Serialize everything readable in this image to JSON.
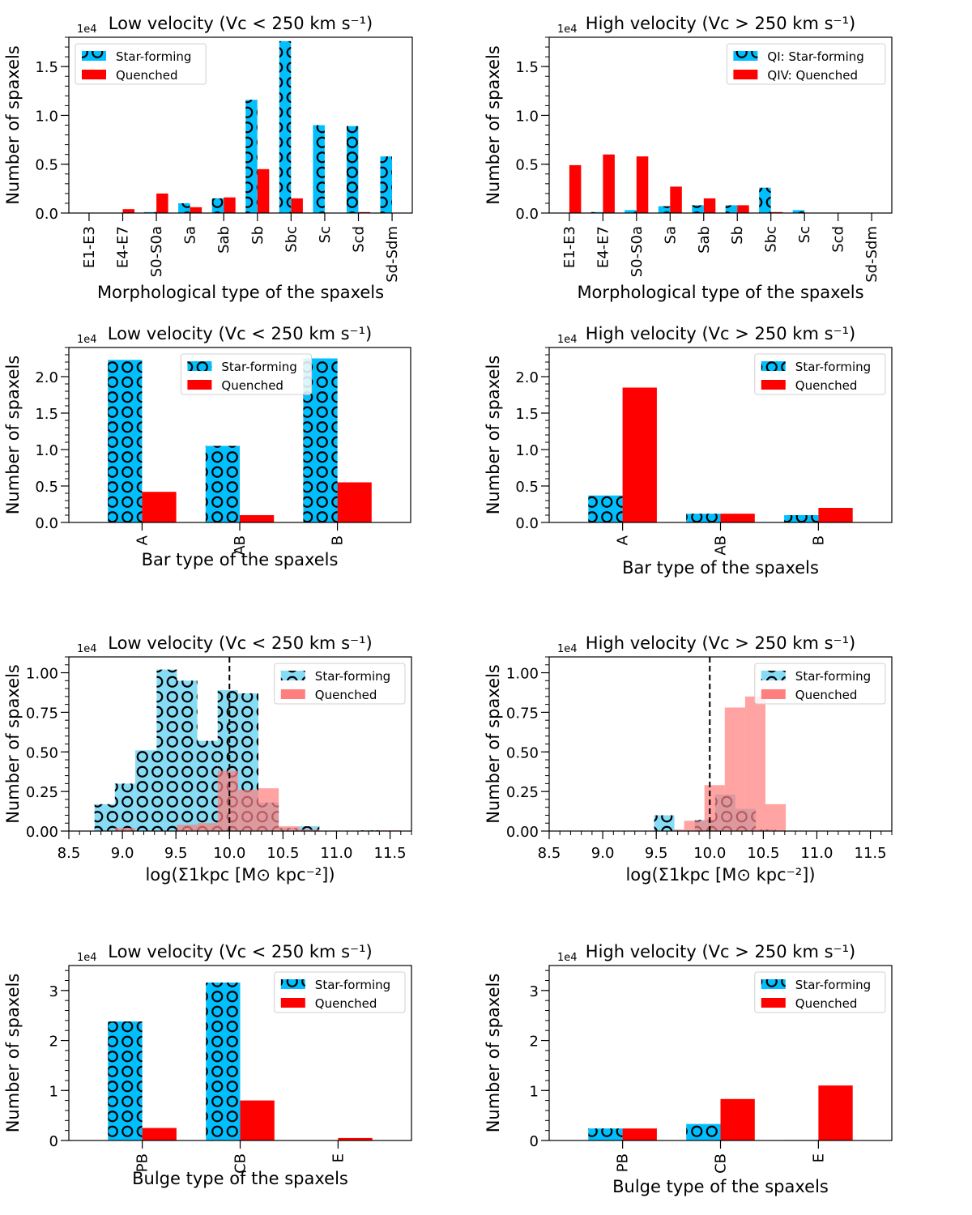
{
  "figure": {
    "colors": {
      "star_forming_bar": "#00bfff",
      "quenched_bar": "#ff0000",
      "star_forming_hist": "#87dcf5",
      "quenched_hist": "#ff7f7f",
      "hatch": "#000000",
      "threshold_line": "#000000"
    }
  },
  "chart_data": [
    {
      "id": "morph-low",
      "type": "bar",
      "title": "Low velocity (Vc < 250 km s⁻¹)",
      "xlabel": "Morphological type of the spaxels",
      "ylabel": "Number of spaxels",
      "multiplier": "1e4",
      "categories": [
        "E1-E3",
        "E4-E7",
        "S0-S0a",
        "Sa",
        "Sab",
        "Sb",
        "Sbc",
        "Sc",
        "Scd",
        "Sd-Sdm"
      ],
      "series": [
        {
          "name": "Star-forming",
          "hatch": "circles",
          "values": [
            0.0,
            0.0,
            0.01,
            0.1,
            0.15,
            1.16,
            1.76,
            0.9,
            0.89,
            0.58
          ]
        },
        {
          "name": "Quenched",
          "values": [
            0.0,
            0.04,
            0.2,
            0.06,
            0.16,
            0.45,
            0.15,
            0.0,
            0.01,
            0.0
          ]
        }
      ],
      "ylim": [
        0,
        1.8
      ],
      "yticks": [
        "0.0",
        "0.5",
        "1.0",
        "1.5"
      ],
      "ytick_values": [
        0,
        0.5,
        1.0,
        1.5
      ],
      "legend": {
        "position": "upper-left",
        "entries": [
          "Star-forming",
          "Quenched"
        ]
      }
    },
    {
      "id": "morph-high",
      "type": "bar",
      "title": "High velocity (Vc > 250 km s⁻¹)",
      "xlabel": "Morphological type of the spaxels",
      "ylabel": "Number of spaxels",
      "multiplier": "1e4",
      "categories": [
        "E1-E3",
        "E4-E7",
        "S0-S0a",
        "Sa",
        "Sab",
        "Sb",
        "Sbc",
        "Sc",
        "Scd",
        "Sd-Sdm"
      ],
      "series": [
        {
          "name": "QI: Star-forming",
          "hatch": "circles",
          "values": [
            0.0,
            0.01,
            0.03,
            0.07,
            0.08,
            0.08,
            0.26,
            0.03,
            0.0,
            0.0
          ]
        },
        {
          "name": "QIV: Quenched",
          "values": [
            0.49,
            0.6,
            0.58,
            0.27,
            0.15,
            0.08,
            0.01,
            0.0,
            0.0,
            0.0
          ]
        }
      ],
      "ylim": [
        0,
        1.8
      ],
      "yticks": [
        "0.0",
        "0.5",
        "1.0",
        "1.5"
      ],
      "ytick_values": [
        0,
        0.5,
        1.0,
        1.5
      ],
      "legend": {
        "position": "upper-right",
        "entries": [
          "QI: Star-forming",
          "QIV: Quenched"
        ]
      }
    },
    {
      "id": "bar-low",
      "type": "bar",
      "title": "Low velocity (Vc < 250 km s⁻¹)",
      "xlabel": "Bar type of the spaxels",
      "ylabel": "Number of spaxels",
      "multiplier": "1e4",
      "categories": [
        "A",
        "AB",
        "B"
      ],
      "series": [
        {
          "name": "Star-forming",
          "hatch": "circles",
          "values": [
            2.23,
            1.05,
            2.25
          ]
        },
        {
          "name": "Quenched",
          "values": [
            0.42,
            0.1,
            0.55
          ]
        }
      ],
      "ylim": [
        0,
        2.4
      ],
      "yticks": [
        "0.0",
        "0.5",
        "1.0",
        "1.5",
        "2.0"
      ],
      "ytick_values": [
        0,
        0.5,
        1.0,
        1.5,
        2.0
      ],
      "legend": {
        "position": "upper-center",
        "entries": [
          "Star-forming",
          "Quenched"
        ]
      }
    },
    {
      "id": "bar-high",
      "type": "bar",
      "title": "High velocity (Vc > 250 km s⁻¹)",
      "xlabel": "Bar type of the spaxels",
      "ylabel": "Number of spaxels",
      "multiplier": "1e4",
      "categories": [
        "A",
        "AB",
        "B"
      ],
      "series": [
        {
          "name": "Star-forming",
          "hatch": "circles",
          "values": [
            0.37,
            0.12,
            0.1
          ]
        },
        {
          "name": "Quenched",
          "values": [
            1.85,
            0.12,
            0.2
          ]
        }
      ],
      "ylim": [
        0,
        2.4
      ],
      "yticks": [
        "0.0",
        "0.5",
        "1.0",
        "1.5",
        "2.0"
      ],
      "ytick_values": [
        0,
        0.5,
        1.0,
        1.5,
        2.0
      ],
      "legend": {
        "position": "upper-right",
        "entries": [
          "Star-forming",
          "Quenched"
        ]
      }
    },
    {
      "id": "sigma-low",
      "type": "histogram",
      "title": "Low velocity (Vc < 250 km s⁻¹)",
      "xlabel": "log(Σ1kpc [M⊙ kpc⁻²])",
      "ylabel": "Number of spaxels",
      "multiplier": "1e4",
      "xlim": [
        8.5,
        11.7
      ],
      "ylim": [
        0,
        1.1
      ],
      "xticks": [
        "8.5",
        "9.0",
        "9.5",
        "10.0",
        "10.5",
        "11.0",
        "11.5"
      ],
      "xtick_values": [
        8.5,
        9.0,
        9.5,
        10.0,
        10.5,
        11.0,
        11.5
      ],
      "yticks": [
        "0.00",
        "0.25",
        "0.50",
        "0.75",
        "1.00"
      ],
      "ytick_values": [
        0,
        0.25,
        0.5,
        0.75,
        1.0
      ],
      "threshold_x": 10.0,
      "series": [
        {
          "name": "Star-forming",
          "hatch": "circles",
          "bin_edges": [
            8.74,
            8.93,
            9.12,
            9.32,
            9.51,
            9.7,
            9.89,
            10.08,
            10.27,
            10.46,
            10.65,
            10.84,
            11.03,
            11.22,
            11.41,
            11.6
          ],
          "values": [
            0.17,
            0.3,
            0.51,
            1.02,
            0.95,
            0.57,
            0.89,
            0.87,
            0.18,
            0.02,
            0.03,
            0.0,
            0.0,
            0.005,
            0.0
          ]
        },
        {
          "name": "Quenched",
          "bin_edges": [
            8.93,
            9.12,
            9.32,
            9.51,
            9.7,
            9.89,
            10.08,
            10.27,
            10.46,
            10.65,
            10.84,
            11.03,
            11.22,
            11.41,
            11.6
          ],
          "values": [
            0.02,
            0.0,
            0.0,
            0.04,
            0.05,
            0.38,
            0.26,
            0.27,
            0.03,
            0.01,
            0.0,
            0.0,
            0.0,
            0.005
          ]
        }
      ],
      "legend": {
        "position": "upper-right",
        "entries": [
          "Star-forming",
          "Quenched"
        ]
      }
    },
    {
      "id": "sigma-high",
      "type": "histogram",
      "title": "High velocity (Vc > 250 km s⁻¹)",
      "xlabel": "log(Σ1kpc [M⊙ kpc⁻²])",
      "ylabel": "Number of spaxels",
      "multiplier": "1e4",
      "xlim": [
        8.5,
        11.7
      ],
      "ylim": [
        0,
        1.1
      ],
      "xticks": [
        "8.5",
        "9.0",
        "9.5",
        "10.0",
        "10.5",
        "11.0",
        "11.5"
      ],
      "xtick_values": [
        8.5,
        9.0,
        9.5,
        10.0,
        10.5,
        11.0,
        11.5
      ],
      "yticks": [
        "0.00",
        "0.25",
        "0.50",
        "0.75",
        "1.00"
      ],
      "ytick_values": [
        0,
        0.25,
        0.5,
        0.75,
        1.0
      ],
      "threshold_x": 10.0,
      "series": [
        {
          "name": "Star-forming",
          "hatch": "circles",
          "bin_edges": [
            9.48,
            9.67,
            9.86,
            10.05,
            10.24,
            10.43,
            10.62
          ],
          "values": [
            0.1,
            0.0,
            0.07,
            0.23,
            0.14,
            0.01
          ]
        },
        {
          "name": "Quenched",
          "bin_edges": [
            9.67,
            9.76,
            9.95,
            10.14,
            10.33,
            10.52,
            10.71
          ],
          "values": [
            0.01,
            0.065,
            0.29,
            0.78,
            0.85,
            0.17
          ]
        }
      ],
      "legend": {
        "position": "upper-right",
        "entries": [
          "Star-forming",
          "Quenched"
        ]
      }
    },
    {
      "id": "bulge-low",
      "type": "bar",
      "title": "Low velocity (Vc <  250 km s⁻¹)",
      "xlabel": "Bulge type of the spaxels",
      "ylabel": "Number of spaxels",
      "multiplier": "1e4",
      "categories": [
        "PB",
        "CB",
        "E"
      ],
      "series": [
        {
          "name": "Star-forming",
          "hatch": "circles",
          "values": [
            2.38,
            3.16,
            0.0
          ]
        },
        {
          "name": "Quenched",
          "values": [
            0.25,
            0.8,
            0.05
          ]
        }
      ],
      "ylim": [
        0,
        3.5
      ],
      "yticks": [
        "0",
        "1",
        "2",
        "3"
      ],
      "ytick_values": [
        0,
        1,
        2,
        3
      ],
      "legend": {
        "position": "upper-right",
        "entries": [
          "Star-forming",
          "Quenched"
        ]
      }
    },
    {
      "id": "bulge-high",
      "type": "bar",
      "title": "High velocity (Vc > 250 km s⁻¹)",
      "xlabel": "Bulge type of the spaxels",
      "ylabel": "Number of spaxels",
      "multiplier": "1e4",
      "categories": [
        "PB",
        "CB",
        "E"
      ],
      "series": [
        {
          "name": "Star-forming",
          "hatch": "circles",
          "values": [
            0.24,
            0.33,
            0.01
          ]
        },
        {
          "name": "Quenched",
          "values": [
            0.24,
            0.83,
            1.1
          ]
        }
      ],
      "ylim": [
        0,
        3.5
      ],
      "yticks": [
        "0",
        "1",
        "2",
        "3"
      ],
      "ytick_values": [
        0,
        1,
        2,
        3
      ],
      "legend": {
        "position": "upper-right",
        "entries": [
          "Star-forming",
          "Quenched"
        ]
      }
    }
  ]
}
